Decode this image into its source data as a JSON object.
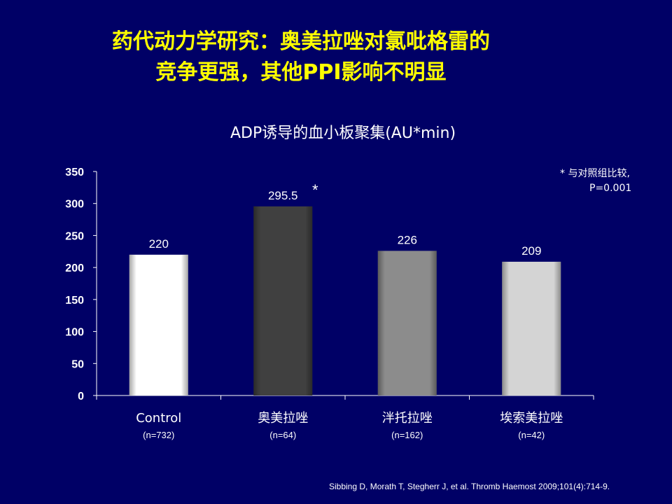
{
  "slide_title": {
    "line1": "药代动力学研究：奥美拉唑对氯吡格雷的",
    "line2": "竞争更强，其他PPI影响不明显"
  },
  "note": {
    "line1": "* 与对照组比较,",
    "line2": "P=0.001"
  },
  "citation": "Sibbing D, Morath T, Stegherr J, et al. Thromb Haemost 2009;101(4):714-9.",
  "chart_data": {
    "type": "bar",
    "title": "ADP诱导的血小板聚集(AU*min)",
    "categories": [
      "Control",
      "奥美拉唑",
      "泮托拉唑",
      "埃索美拉唑"
    ],
    "sample_sizes": [
      "(n=732)",
      "(n=64)",
      "(n=162)",
      "(n=42)"
    ],
    "values": [
      220,
      295.5,
      226,
      209
    ],
    "value_labels": [
      "220",
      "295.5",
      "226",
      "209"
    ],
    "significance_marks": [
      "",
      "*",
      "",
      ""
    ],
    "yticks": [
      "0",
      "50",
      "100",
      "150",
      "200",
      "250",
      "300",
      "350"
    ],
    "ylim": [
      0,
      350
    ],
    "bar_colors": [
      "#ffffff",
      "#404040",
      "#8c8c8c",
      "#d4d4d4"
    ],
    "text_color": "#ffffff"
  }
}
